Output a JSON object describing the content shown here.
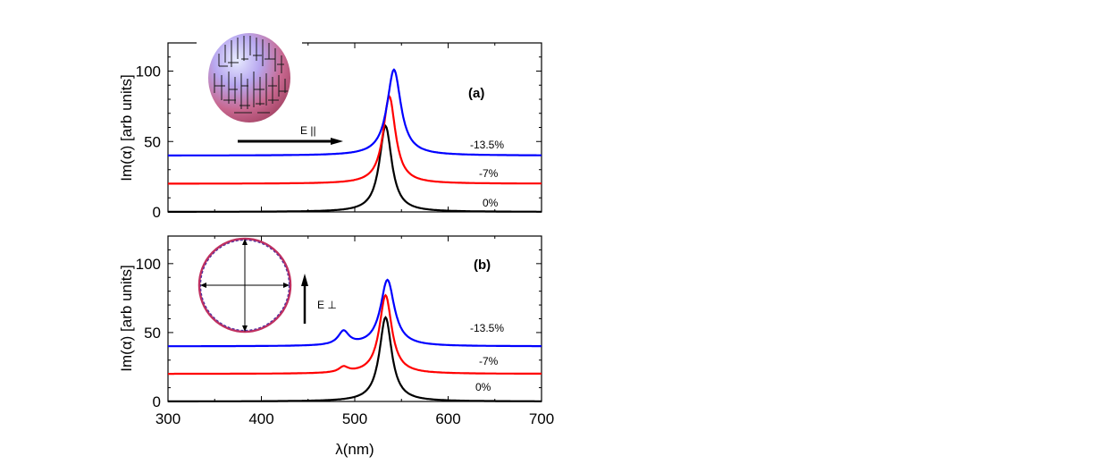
{
  "chart_data": [
    {
      "panel": "a",
      "type": "line",
      "panel_label": "(a)",
      "xlabel": "λ(nm)",
      "ylabel": "Im(α) [arb units]",
      "xlim": [
        300,
        700
      ],
      "ylim": [
        0,
        120
      ],
      "xticks": [
        300,
        400,
        500,
        600,
        700
      ],
      "yticks": [
        0,
        50,
        100
      ],
      "inset_label": "E ||",
      "series": [
        {
          "name": "0%",
          "label": "0%",
          "color": "#000000",
          "offset": 0,
          "peaks": [
            {
              "center": 533,
              "height": 61,
              "width": 8
            }
          ]
        },
        {
          "name": "-7%",
          "label": "-7%",
          "color": "#ff0000",
          "offset": 20,
          "peaks": [
            {
              "center": 537,
              "height": 62,
              "width": 8
            }
          ]
        },
        {
          "name": "-13.5%",
          "label": "-13.5%",
          "color": "#0000ff",
          "offset": 40,
          "peaks": [
            {
              "center": 542,
              "height": 61,
              "width": 9
            }
          ]
        }
      ]
    },
    {
      "panel": "b",
      "type": "line",
      "panel_label": "(b)",
      "xlabel": "λ(nm)",
      "ylabel": "Im(α) [arb units]",
      "xlim": [
        300,
        700
      ],
      "ylim": [
        0,
        120
      ],
      "xticks": [
        300,
        400,
        500,
        600,
        700
      ],
      "yticks": [
        0,
        50,
        100
      ],
      "inset_label": "E ⊥",
      "series": [
        {
          "name": "0%",
          "label": "0%",
          "color": "#000000",
          "offset": 0,
          "peaks": [
            {
              "center": 533,
              "height": 61,
              "width": 8
            }
          ]
        },
        {
          "name": "-7%",
          "label": "-7%",
          "color": "#ff0000",
          "offset": 20,
          "peaks": [
            {
              "center": 533,
              "height": 57,
              "width": 8
            },
            {
              "center": 488,
              "height": 4,
              "width": 6
            }
          ]
        },
        {
          "name": "-13.5%",
          "label": "-13.5%",
          "color": "#0000ff",
          "offset": 40,
          "peaks": [
            {
              "center": 535,
              "height": 48,
              "width": 9
            },
            {
              "center": 488,
              "height": 10,
              "width": 7
            }
          ]
        }
      ]
    }
  ]
}
